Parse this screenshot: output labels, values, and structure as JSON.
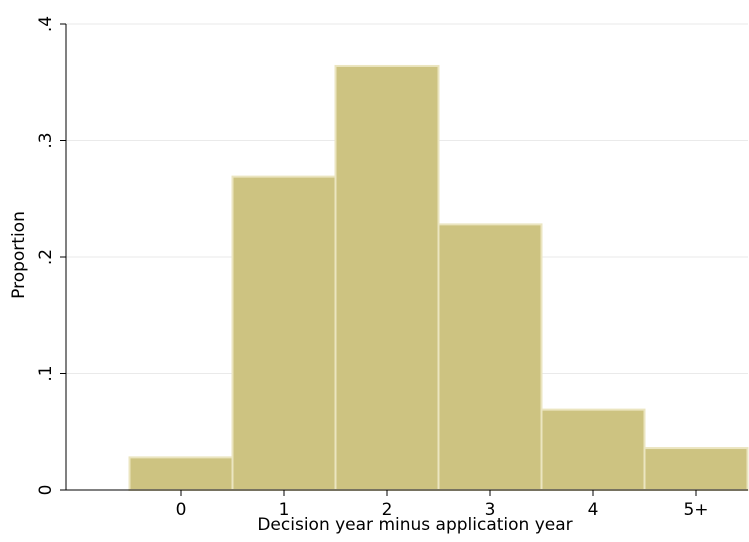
{
  "chart_data": {
    "type": "bar",
    "x_label": "Decision year minus application year",
    "y_label": "Proportion",
    "categories": [
      "0",
      "1",
      "2",
      "3",
      "4",
      "5+"
    ],
    "values": [
      0.028,
      0.269,
      0.364,
      0.228,
      0.069,
      0.036
    ],
    "color": "#cdc381",
    "ylim": [
      0,
      0.4
    ],
    "yticks": [
      0,
      {
        "value": 0.1,
        "label": ".1"
      },
      {
        "value": 0.2,
        "label": ".2"
      },
      {
        "value": 0.3,
        "label": ".3"
      },
      {
        "value": 0.4,
        "label": ".4"
      }
    ],
    "grid": true
  }
}
